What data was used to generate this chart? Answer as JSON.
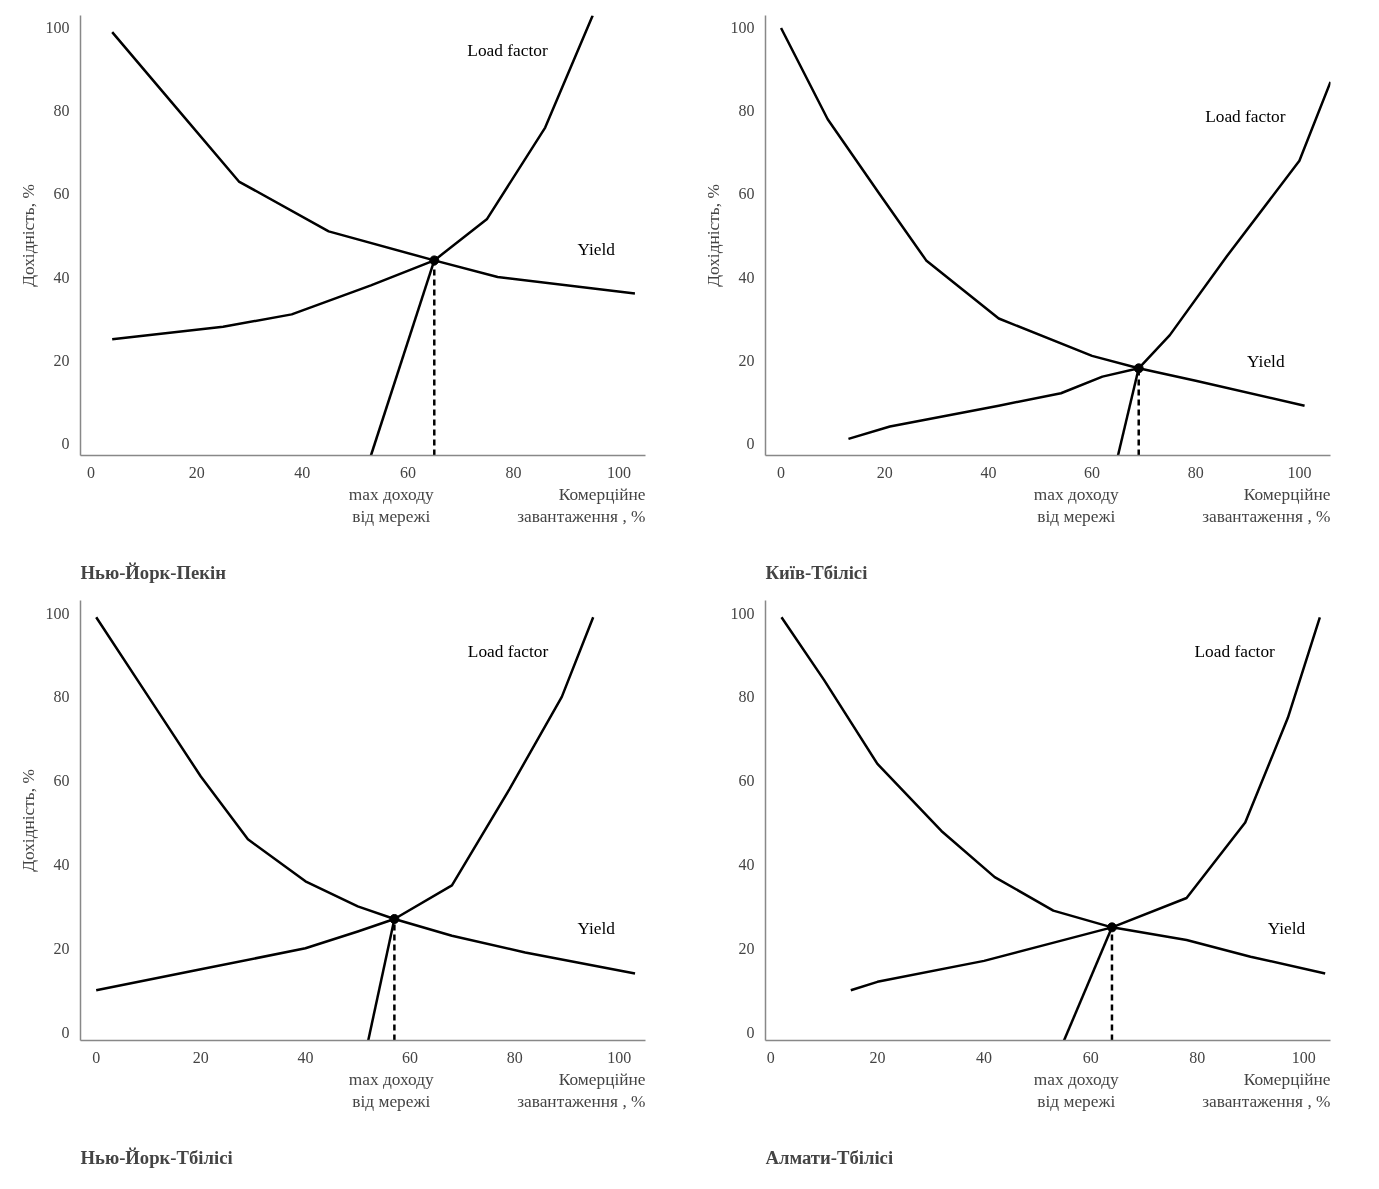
{
  "chart_data": [
    {
      "type": "line",
      "title": "Нью-Йорк-Пекін",
      "xlabel": "Комерційне\nзавантаження , %",
      "ylabel": "Дохідність, %",
      "xlim": [
        -2,
        105
      ],
      "ylim": [
        -3,
        103
      ],
      "xticks": [
        0,
        20,
        40,
        60,
        80,
        100
      ],
      "yticks": [
        0,
        20,
        40,
        60,
        80,
        100
      ],
      "series": [
        {
          "name": "Load factor",
          "color": "#000000",
          "line_style": "solid",
          "x": [
            4,
            25,
            38,
            53,
            65,
            75,
            86,
            95
          ],
          "values": [
            25,
            28,
            31,
            38,
            44,
            54,
            76,
            103
          ]
        },
        {
          "name": "Yield",
          "color": "#000000",
          "line_style": "solid",
          "x": [
            4,
            16,
            28,
            45,
            65,
            77,
            103
          ],
          "values": [
            99,
            81,
            63,
            51,
            44,
            40,
            36
          ]
        },
        {
          "type": "line",
          "color": "#000000",
          "line_style": "dashed",
          "marker": "none",
          "x": [
            65,
            65
          ],
          "values": [
            -3,
            44
          ]
        },
        {
          "type": "line",
          "color": "#000000",
          "line_style": "solid",
          "marker": "none",
          "x": [
            65,
            53
          ],
          "values": [
            44,
            -3
          ]
        },
        {
          "type": "scatter",
          "color": "#000000",
          "marker": "circle",
          "x": [
            65
          ],
          "values": [
            44
          ]
        }
      ],
      "annotations": [
        "max доходу\nвід мережі"
      ]
    },
    {
      "type": "line",
      "title": "Київ-Тбілісі",
      "xlabel": "Комерційне\nзавантаження , %",
      "ylabel": "Дохідність, %",
      "xlim": [
        -3,
        106
      ],
      "ylim": [
        -3,
        103
      ],
      "xticks": [
        0,
        20,
        40,
        60,
        80,
        100
      ],
      "yticks": [
        0,
        20,
        40,
        60,
        80,
        100
      ],
      "series": [
        {
          "name": "Load factor",
          "color": "#000000",
          "line_style": "solid",
          "x": [
            13,
            21,
            42,
            54,
            62,
            69,
            75,
            86,
            100,
            106
          ],
          "values": [
            1,
            4,
            9,
            12,
            16,
            18,
            26,
            45,
            68,
            87
          ]
        },
        {
          "name": "Yield",
          "color": "#000000",
          "line_style": "solid",
          "x": [
            0,
            9,
            19,
            28,
            42,
            60,
            69,
            80,
            101
          ],
          "values": [
            100,
            78,
            60,
            44,
            30,
            21,
            18,
            15,
            9
          ]
        },
        {
          "type": "line",
          "color": "#000000",
          "line_style": "dashed",
          "marker": "none",
          "x": [
            69,
            69
          ],
          "values": [
            -3,
            18
          ]
        },
        {
          "type": "line",
          "color": "#000000",
          "line_style": "solid",
          "marker": "none",
          "x": [
            69,
            65
          ],
          "values": [
            18,
            -3
          ]
        },
        {
          "type": "scatter",
          "color": "#000000",
          "marker": "circle",
          "x": [
            69
          ],
          "values": [
            18
          ]
        }
      ],
      "annotations": [
        "max доходу\nвід мережі"
      ]
    },
    {
      "type": "line",
      "title": "Нью-Йорк-Тбілісі",
      "xlabel": "Комерційне\nзавантаження , %",
      "ylabel": "Дохідність, %",
      "xlim": [
        -3,
        105
      ],
      "ylim": [
        -2,
        103
      ],
      "xticks": [
        0,
        20,
        40,
        60,
        80,
        100
      ],
      "yticks": [
        0,
        20,
        40,
        60,
        80,
        100
      ],
      "series": [
        {
          "name": "Load factor",
          "color": "#000000",
          "line_style": "solid",
          "x": [
            0,
            20,
            40,
            50,
            57,
            68,
            79,
            89,
            95
          ],
          "values": [
            10,
            15,
            20,
            24,
            27,
            35,
            58,
            80,
            99
          ]
        },
        {
          "name": "Yield",
          "color": "#000000",
          "line_style": "solid",
          "x": [
            0,
            10,
            20,
            29,
            40,
            50,
            57,
            68,
            82,
            103
          ],
          "values": [
            99,
            80,
            61,
            46,
            36,
            30,
            27,
            23,
            19,
            14
          ]
        },
        {
          "type": "line",
          "color": "#000000",
          "line_style": "dashed",
          "marker": "none",
          "x": [
            57,
            57
          ],
          "values": [
            -2,
            27
          ]
        },
        {
          "type": "line",
          "color": "#000000",
          "line_style": "solid",
          "marker": "none",
          "x": [
            57,
            52
          ],
          "values": [
            27,
            -2
          ]
        },
        {
          "type": "scatter",
          "color": "#000000",
          "marker": "circle",
          "x": [
            57
          ],
          "values": [
            27
          ]
        }
      ],
      "annotations": [
        "max доходу\nвід мережі"
      ]
    },
    {
      "type": "line",
      "title": "Алмати-Тбілісі",
      "xlabel": "Комерційне\nзавантаження , %",
      "xlim": [
        -1,
        105
      ],
      "ylim": [
        -2,
        103
      ],
      "xticks": [
        0,
        20,
        40,
        60,
        80,
        100
      ],
      "yticks": [
        0,
        20,
        40,
        60,
        80,
        100
      ],
      "series": [
        {
          "name": "Load factor",
          "color": "#000000",
          "line_style": "solid",
          "x": [
            15,
            20,
            40,
            52,
            64,
            78,
            89,
            97,
            103
          ],
          "values": [
            10,
            12,
            17,
            21,
            25,
            32,
            50,
            75,
            99
          ]
        },
        {
          "name": "Yield",
          "color": "#000000",
          "line_style": "solid",
          "x": [
            2,
            10,
            20,
            32,
            42,
            53,
            64,
            78,
            90,
            104
          ],
          "values": [
            99,
            84,
            64,
            48,
            37,
            29,
            25,
            22,
            18,
            14
          ]
        },
        {
          "type": "line",
          "color": "#000000",
          "line_style": "dashed",
          "marker": "none",
          "x": [
            64,
            64
          ],
          "values": [
            -2,
            25
          ]
        },
        {
          "type": "line",
          "color": "#000000",
          "line_style": "solid",
          "marker": "none",
          "x": [
            64,
            55
          ],
          "values": [
            25,
            -2
          ]
        },
        {
          "type": "scatter",
          "color": "#000000",
          "marker": "circle",
          "x": [
            64
          ],
          "values": [
            25
          ]
        }
      ],
      "annotations": [
        "max доходу\nвід мережі"
      ]
    }
  ]
}
